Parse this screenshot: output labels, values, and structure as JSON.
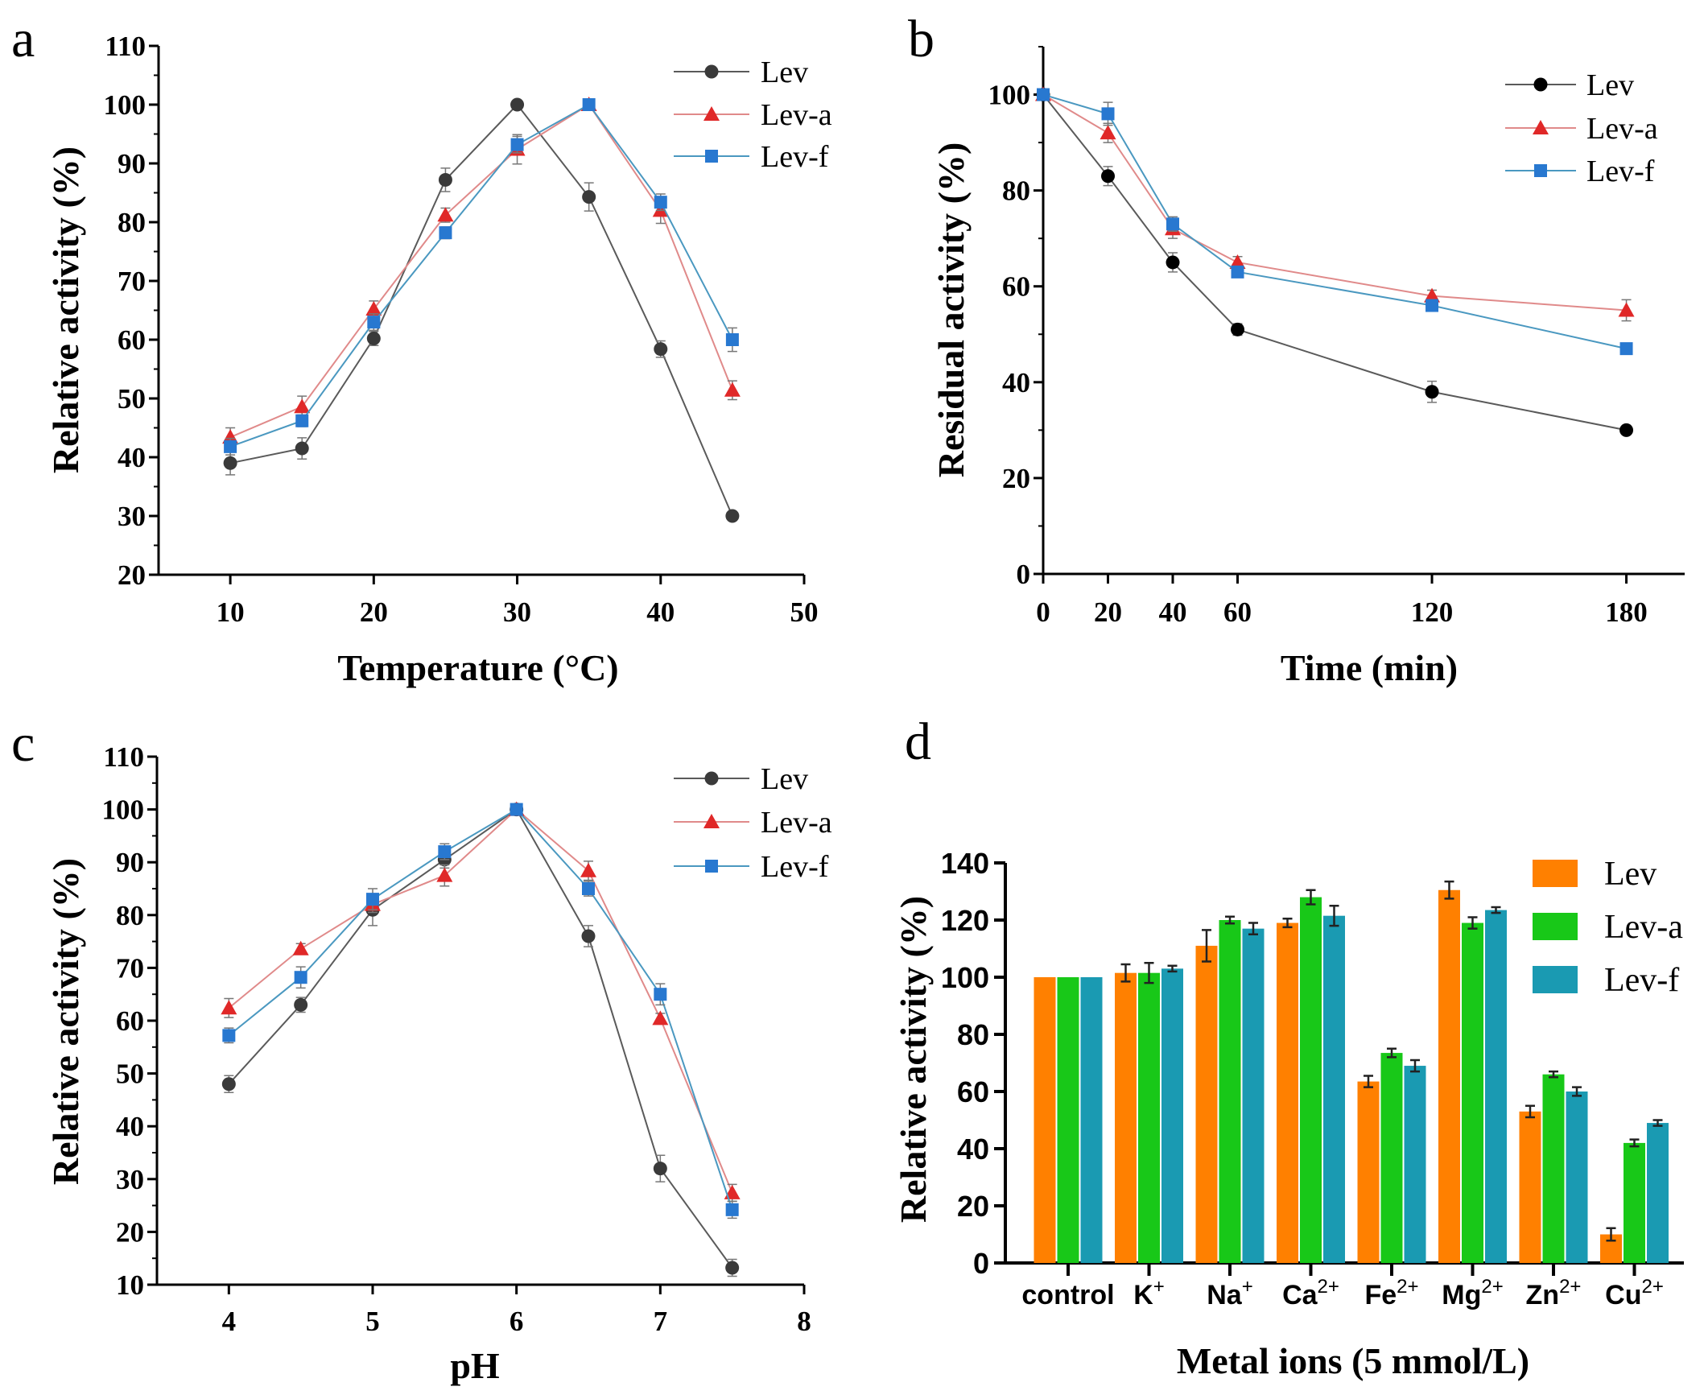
{
  "chart_data": [
    {
      "panel": "a",
      "type": "line",
      "xlabel": "Temperature (°C)",
      "ylabel": "Relative activity (%)",
      "xlim": [
        5,
        50
      ],
      "ylim": [
        20,
        110
      ],
      "xticks": [
        "10",
        "20",
        "30",
        "40",
        "50"
      ],
      "xtick_values": [
        10,
        20,
        30,
        40,
        50
      ],
      "yticks": [
        "20",
        "30",
        "40",
        "50",
        "60",
        "70",
        "80",
        "90",
        "100",
        "110"
      ],
      "ytick_values": [
        20,
        30,
        40,
        50,
        60,
        70,
        80,
        90,
        100,
        110
      ],
      "legend_position": "top-right",
      "x": [
        10,
        15,
        20,
        25,
        30,
        35,
        40,
        45
      ],
      "series": [
        {
          "name": "Lev",
          "values": [
            39,
            41.5,
            60.2,
            87.2,
            100,
            84.3,
            58.4,
            30
          ],
          "errors": [
            2,
            1.8,
            1.2,
            2,
            0.5,
            2.4,
            1.4,
            0.5
          ]
        },
        {
          "name": "Lev-a",
          "values": [
            43.4,
            48.6,
            65.2,
            81.2,
            92.4,
            100,
            82,
            51.4
          ],
          "errors": [
            1.6,
            1.8,
            1.4,
            1.2,
            2.5,
            0.5,
            2.2,
            1.6
          ]
        },
        {
          "name": "Lev-f",
          "values": [
            41.8,
            46.2,
            63,
            78.2,
            93.2,
            100,
            83.4,
            60
          ],
          "errors": [
            1.4,
            1,
            1.4,
            1,
            1.4,
            0.5,
            1.4,
            2
          ]
        }
      ]
    },
    {
      "panel": "b",
      "type": "line",
      "xlabel": "Time (min)",
      "ylabel": "Residual activity (%)",
      "xlim": [
        0,
        198
      ],
      "ylim": [
        0,
        110
      ],
      "xticks": [
        "0",
        "20",
        "40",
        "60",
        "120",
        "180"
      ],
      "xtick_values": [
        0,
        20,
        40,
        60,
        120,
        180
      ],
      "yticks": [
        "0",
        "20",
        "40",
        "60",
        "80",
        "100"
      ],
      "ytick_values": [
        0,
        20,
        40,
        60,
        80,
        100
      ],
      "legend_position": "top-right",
      "x": [
        0,
        20,
        40,
        60,
        120,
        180
      ],
      "series": [
        {
          "name": "Lev",
          "values": [
            100,
            83,
            65,
            51,
            38,
            30
          ],
          "errors": [
            0.5,
            2,
            2,
            1.2,
            2.2,
            0.5
          ]
        },
        {
          "name": "Lev-a",
          "values": [
            100,
            92,
            72,
            65,
            58,
            55
          ],
          "errors": [
            0.5,
            2,
            2,
            1.2,
            1.2,
            2.2
          ]
        },
        {
          "name": "Lev-f",
          "values": [
            100,
            96,
            73,
            63,
            56,
            47
          ],
          "errors": [
            0.5,
            2.4,
            1.5,
            1,
            1,
            1
          ]
        }
      ]
    },
    {
      "panel": "c",
      "type": "line",
      "xlabel": "pH",
      "ylabel": "Relative activity (%)",
      "xlim": [
        3.5,
        8
      ],
      "ylim": [
        10,
        110
      ],
      "xticks": [
        "4",
        "5",
        "6",
        "7",
        "8"
      ],
      "xtick_values": [
        4,
        5,
        6,
        7,
        8
      ],
      "yticks": [
        "10",
        "20",
        "30",
        "40",
        "50",
        "60",
        "70",
        "80",
        "90",
        "100",
        "110"
      ],
      "ytick_values": [
        10,
        20,
        30,
        40,
        50,
        60,
        70,
        80,
        90,
        100,
        110
      ],
      "legend_position": "top-right",
      "x": [
        4,
        4.5,
        5,
        5.5,
        6,
        6.5,
        7,
        7.5
      ],
      "series": [
        {
          "name": "Lev",
          "values": [
            48,
            63,
            81,
            90.5,
            100,
            76,
            32,
            13.2
          ],
          "errors": [
            1.6,
            1.4,
            3,
            1.6,
            0.5,
            2,
            2.5,
            1.6
          ]
        },
        {
          "name": "Lev-a",
          "values": [
            62.4,
            73.6,
            82,
            87.5,
            100,
            88.4,
            60.4,
            27.4
          ],
          "errors": [
            1.8,
            1,
            1.5,
            2,
            0.5,
            1.8,
            1,
            1.6
          ]
        },
        {
          "name": "Lev-f",
          "values": [
            57.2,
            68.2,
            83,
            92,
            100,
            85,
            65,
            24.2
          ],
          "errors": [
            1.4,
            2,
            2,
            1.5,
            0.5,
            1.4,
            2,
            1.6
          ]
        }
      ]
    },
    {
      "panel": "d",
      "type": "bar",
      "xlabel": "Metal ions (5 mmol/L)",
      "ylabel": "Relative activity (%)",
      "ylim": [
        0,
        140
      ],
      "yticks": [
        "0",
        "20",
        "40",
        "60",
        "80",
        "100",
        "120",
        "140"
      ],
      "ytick_values": [
        0,
        20,
        40,
        60,
        80,
        100,
        120,
        140
      ],
      "legend_position": "top-right",
      "categories": [
        "control",
        "K+",
        "Na+",
        "Ca2+",
        "Fe2+",
        "Mg2+",
        "Zn2+",
        "Cu2+"
      ],
      "series": [
        {
          "name": "Lev",
          "values": [
            100,
            101.5,
            111,
            119,
            63.5,
            130.5,
            53,
            10
          ],
          "errors": [
            0,
            3,
            5.5,
            1.5,
            2,
            3,
            2,
            2.2
          ]
        },
        {
          "name": "Lev-a",
          "values": [
            100,
            101.5,
            120,
            128,
            73.5,
            119,
            66,
            42
          ],
          "errors": [
            0,
            3.5,
            1.2,
            2.5,
            1.5,
            2,
            1,
            1.2
          ]
        },
        {
          "name": "Lev-f",
          "values": [
            100,
            103,
            117,
            121.5,
            69,
            123.5,
            60,
            49
          ],
          "errors": [
            0,
            1,
            2,
            3.5,
            2,
            1,
            1.5,
            1
          ]
        }
      ]
    }
  ],
  "colors": {
    "lev_marker": "#3a3a3a",
    "lev_marker_b": "#000000",
    "lev_line": "#5a5a5a",
    "leva_marker": "#e02828",
    "leva_line": "#e08a8a",
    "levf_marker": "#2878d0",
    "levf_line": "#4a98c0",
    "bar_lev": "#ff8000",
    "bar_leva": "#18c818",
    "bar_levf": "#1a9ab2"
  }
}
